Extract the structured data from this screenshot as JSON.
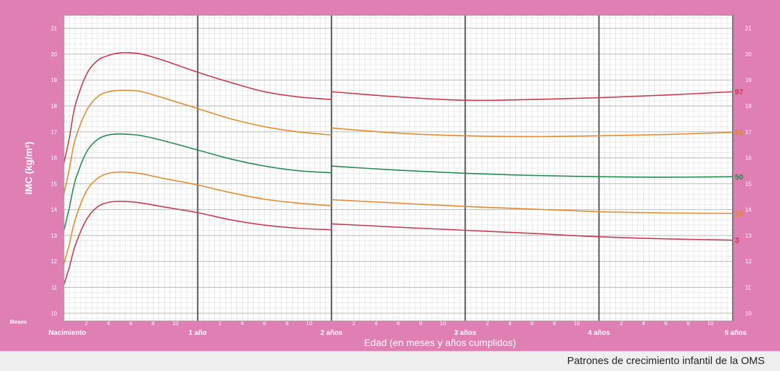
{
  "colors": {
    "background": "#e07fb3",
    "plot_area": "#ffffff",
    "grid_minor": "#d9d9d9",
    "grid_year": "#555555",
    "label_text": "#ffffff",
    "p97": "#c6384a",
    "p85": "#e28a2b",
    "p50": "#1f8a4c",
    "p15": "#e28a2b",
    "p3": "#c6384a"
  },
  "footer": {
    "text": "Patrones de crecimiento infantil de la OMS"
  },
  "chart_data": {
    "type": "line",
    "title": "",
    "ylabel": "IMC (kg/m²)",
    "xlabel": "Edad (en meses y años cumplidos)",
    "xlim": [
      0,
      60
    ],
    "ylim": [
      9.7,
      21.5
    ],
    "grid": true,
    "y_ticks": [
      10,
      11,
      12,
      13,
      14,
      15,
      16,
      17,
      18,
      19,
      20,
      21
    ],
    "months_label": "Meses",
    "month_ticks": [
      {
        "x": 2,
        "label": "2"
      },
      {
        "x": 4,
        "label": "4"
      },
      {
        "x": 6,
        "label": "6"
      },
      {
        "x": 8,
        "label": "8"
      },
      {
        "x": 10,
        "label": "10"
      },
      {
        "x": 14,
        "label": "2"
      },
      {
        "x": 16,
        "label": "4"
      },
      {
        "x": 18,
        "label": "6"
      },
      {
        "x": 20,
        "label": "8"
      },
      {
        "x": 22,
        "label": "10"
      },
      {
        "x": 26,
        "label": "2"
      },
      {
        "x": 28,
        "label": "4"
      },
      {
        "x": 30,
        "label": "6"
      },
      {
        "x": 32,
        "label": "8"
      },
      {
        "x": 34,
        "label": "10"
      },
      {
        "x": 38,
        "label": "2"
      },
      {
        "x": 40,
        "label": "4"
      },
      {
        "x": 42,
        "label": "6"
      },
      {
        "x": 44,
        "label": "8"
      },
      {
        "x": 46,
        "label": "10"
      },
      {
        "x": 50,
        "label": "2"
      },
      {
        "x": 52,
        "label": "4"
      },
      {
        "x": 54,
        "label": "6"
      },
      {
        "x": 56,
        "label": "8"
      },
      {
        "x": 58,
        "label": "10"
      }
    ],
    "year_ticks": [
      {
        "x": 0,
        "label": "Nacimiento"
      },
      {
        "x": 12,
        "label": "1 año"
      },
      {
        "x": 24,
        "label": "2 años"
      },
      {
        "x": 36,
        "label": "3 años"
      },
      {
        "x": 48,
        "label": "4 años"
      },
      {
        "x": 60,
        "label": "5 años"
      }
    ],
    "segments": [
      {
        "name": "0-24",
        "x_range": [
          0,
          24
        ]
      },
      {
        "name": "24-60",
        "x_range": [
          24,
          60
        ]
      }
    ],
    "series": [
      {
        "name": "97",
        "color": "#c6384a",
        "segment1": [
          [
            0,
            15.8
          ],
          [
            0.5,
            16.8
          ],
          [
            1,
            18.0
          ],
          [
            2,
            19.2
          ],
          [
            3,
            19.75
          ],
          [
            4,
            19.95
          ],
          [
            5,
            20.05
          ],
          [
            6,
            20.05
          ],
          [
            7,
            20.0
          ],
          [
            9,
            19.75
          ],
          [
            12,
            19.3
          ],
          [
            15,
            18.9
          ],
          [
            18,
            18.55
          ],
          [
            21,
            18.35
          ],
          [
            24,
            18.25
          ]
        ],
        "segment2": [
          [
            24,
            18.55
          ],
          [
            30,
            18.35
          ],
          [
            36,
            18.22
          ],
          [
            42,
            18.25
          ],
          [
            48,
            18.32
          ],
          [
            54,
            18.42
          ],
          [
            60,
            18.55
          ]
        ]
      },
      {
        "name": "85",
        "color": "#e28a2b",
        "segment1": [
          [
            0,
            14.6
          ],
          [
            0.5,
            15.6
          ],
          [
            1,
            16.7
          ],
          [
            2,
            17.8
          ],
          [
            3,
            18.35
          ],
          [
            4,
            18.55
          ],
          [
            5,
            18.6
          ],
          [
            6,
            18.6
          ],
          [
            7,
            18.55
          ],
          [
            9,
            18.3
          ],
          [
            12,
            17.9
          ],
          [
            15,
            17.5
          ],
          [
            18,
            17.2
          ],
          [
            21,
            17.0
          ],
          [
            24,
            16.88
          ]
        ],
        "segment2": [
          [
            24,
            17.15
          ],
          [
            30,
            16.95
          ],
          [
            36,
            16.85
          ],
          [
            42,
            16.82
          ],
          [
            48,
            16.85
          ],
          [
            54,
            16.9
          ],
          [
            60,
            16.98
          ]
        ]
      },
      {
        "name": "50",
        "color": "#1f8a4c",
        "segment1": [
          [
            0,
            13.2
          ],
          [
            0.5,
            14.1
          ],
          [
            1,
            15.1
          ],
          [
            2,
            16.2
          ],
          [
            3,
            16.7
          ],
          [
            4,
            16.88
          ],
          [
            5,
            16.92
          ],
          [
            6,
            16.9
          ],
          [
            7,
            16.85
          ],
          [
            9,
            16.65
          ],
          [
            12,
            16.3
          ],
          [
            15,
            15.95
          ],
          [
            18,
            15.68
          ],
          [
            21,
            15.5
          ],
          [
            24,
            15.42
          ]
        ],
        "segment2": [
          [
            24,
            15.68
          ],
          [
            30,
            15.52
          ],
          [
            36,
            15.4
          ],
          [
            42,
            15.32
          ],
          [
            48,
            15.27
          ],
          [
            54,
            15.25
          ],
          [
            60,
            15.27
          ]
        ]
      },
      {
        "name": "15",
        "color": "#e28a2b",
        "segment1": [
          [
            0,
            11.9
          ],
          [
            0.5,
            12.7
          ],
          [
            1,
            13.6
          ],
          [
            2,
            14.7
          ],
          [
            3,
            15.2
          ],
          [
            4,
            15.4
          ],
          [
            5,
            15.45
          ],
          [
            6,
            15.43
          ],
          [
            7,
            15.38
          ],
          [
            9,
            15.2
          ],
          [
            12,
            14.95
          ],
          [
            15,
            14.65
          ],
          [
            18,
            14.4
          ],
          [
            21,
            14.25
          ],
          [
            24,
            14.15
          ]
        ],
        "segment2": [
          [
            24,
            14.38
          ],
          [
            30,
            14.25
          ],
          [
            36,
            14.12
          ],
          [
            42,
            14.02
          ],
          [
            48,
            13.92
          ],
          [
            54,
            13.87
          ],
          [
            60,
            13.85
          ]
        ]
      },
      {
        "name": "3",
        "color": "#c6384a",
        "segment1": [
          [
            0,
            11.1
          ],
          [
            0.5,
            11.8
          ],
          [
            1,
            12.6
          ],
          [
            2,
            13.6
          ],
          [
            3,
            14.1
          ],
          [
            4,
            14.28
          ],
          [
            5,
            14.32
          ],
          [
            6,
            14.3
          ],
          [
            7,
            14.25
          ],
          [
            9,
            14.1
          ],
          [
            12,
            13.88
          ],
          [
            15,
            13.6
          ],
          [
            18,
            13.4
          ],
          [
            21,
            13.28
          ],
          [
            24,
            13.22
          ]
        ],
        "segment2": [
          [
            24,
            13.45
          ],
          [
            30,
            13.32
          ],
          [
            36,
            13.2
          ],
          [
            42,
            13.08
          ],
          [
            48,
            12.95
          ],
          [
            54,
            12.87
          ],
          [
            60,
            12.82
          ]
        ]
      }
    ]
  }
}
